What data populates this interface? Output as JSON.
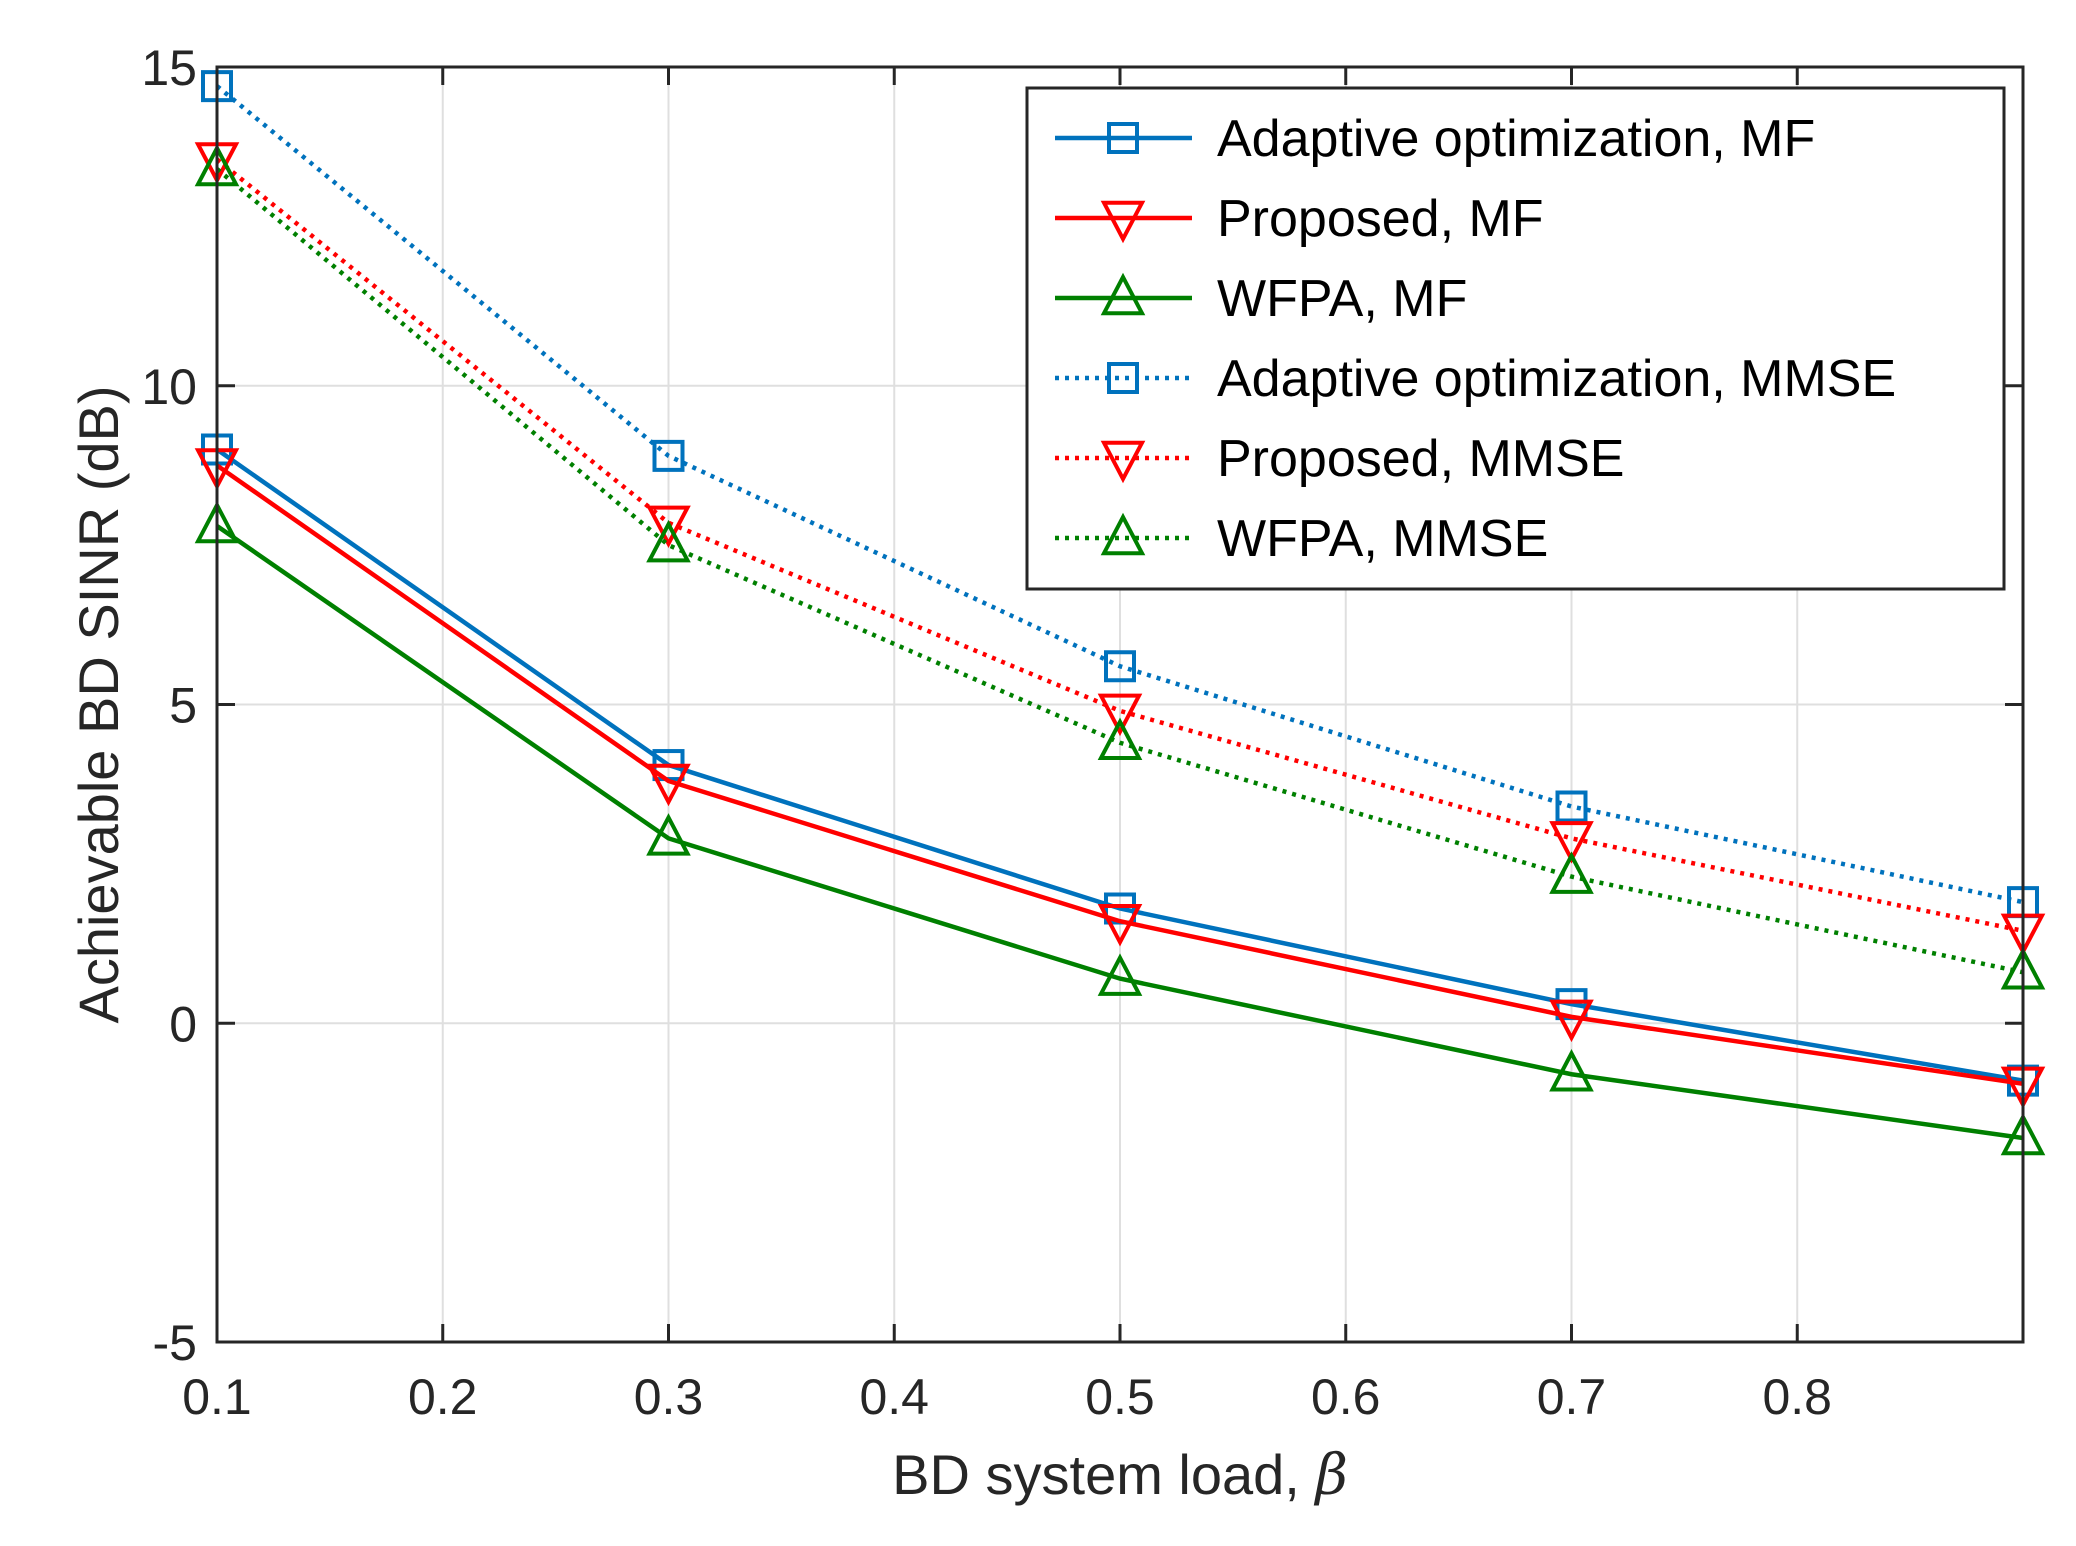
{
  "chart_data": {
    "type": "line",
    "title": "",
    "xlabel": "BD system load, ",
    "xlabel_symbol": "β",
    "ylabel": "Achievable BD SINR (dB)",
    "xlim": [
      0.1,
      0.9
    ],
    "ylim": [
      -5,
      15
    ],
    "xticks": [
      0.1,
      0.2,
      0.3,
      0.4,
      0.5,
      0.6,
      0.7,
      0.8
    ],
    "xtick_labels": [
      "0.1",
      "0.2",
      "0.3",
      "0.4",
      "0.5",
      "0.6",
      "0.7",
      "0.8"
    ],
    "yticks": [
      -5,
      0,
      5,
      10,
      15
    ],
    "ytick_labels": [
      "-5",
      "0",
      "5",
      "10",
      "15"
    ],
    "grid": true,
    "legend_position": "top-right",
    "x": [
      0.1,
      0.3,
      0.5,
      0.7,
      0.9
    ],
    "series": [
      {
        "name": "Adaptive optimization, MF",
        "values": [
          9.0,
          4.05,
          1.8,
          0.3,
          -0.9
        ],
        "color": "#0072BD",
        "marker": "square",
        "line": "solid"
      },
      {
        "name": "Proposed, MF",
        "values": [
          8.75,
          3.8,
          1.6,
          0.1,
          -0.95
        ],
        "color": "#FF0000",
        "marker": "triangle-down",
        "line": "solid"
      },
      {
        "name": "WFPA, MF",
        "values": [
          7.8,
          2.9,
          0.7,
          -0.8,
          -1.8
        ],
        "color": "#008000",
        "marker": "triangle-up",
        "line": "solid"
      },
      {
        "name": "Adaptive optimization, MMSE",
        "values": [
          14.7,
          8.9,
          5.6,
          3.4,
          1.9
        ],
        "color": "#0072BD",
        "marker": "square",
        "line": "dotted"
      },
      {
        "name": "Proposed, MMSE",
        "values": [
          13.55,
          7.85,
          4.9,
          2.9,
          1.45
        ],
        "color": "#FF0000",
        "marker": "triangle-down",
        "line": "dotted"
      },
      {
        "name": "WFPA, MMSE",
        "values": [
          13.4,
          7.5,
          4.4,
          2.3,
          0.8
        ],
        "color": "#008000",
        "marker": "triangle-up",
        "line": "dotted"
      }
    ]
  }
}
